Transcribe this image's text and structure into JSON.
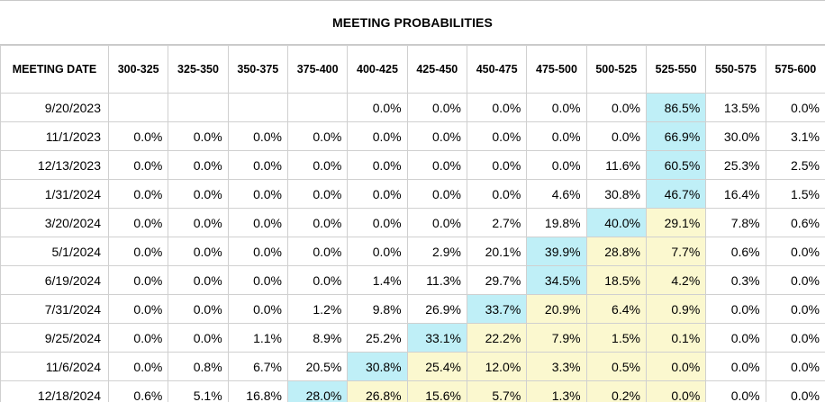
{
  "title": "MEETING PROBABILITIES",
  "colors": {
    "highest_probability": "#bfeff7",
    "above_current": "#fbf8cf",
    "grid": "#d0d0d0"
  },
  "header": {
    "date_label": "MEETING DATE",
    "ranges": [
      "300-325",
      "325-350",
      "350-375",
      "375-400",
      "400-425",
      "425-450",
      "450-475",
      "475-500",
      "500-525",
      "525-550",
      "550-575",
      "575-600"
    ]
  },
  "rows": [
    {
      "date": "9/20/2023",
      "values": [
        "",
        "",
        "",
        "",
        "0.0%",
        "0.0%",
        "0.0%",
        "0.0%",
        "0.0%",
        "86.5%",
        "13.5%",
        "0.0%"
      ],
      "highlight": {
        "9": "blue"
      }
    },
    {
      "date": "11/1/2023",
      "values": [
        "0.0%",
        "0.0%",
        "0.0%",
        "0.0%",
        "0.0%",
        "0.0%",
        "0.0%",
        "0.0%",
        "0.0%",
        "66.9%",
        "30.0%",
        "3.1%"
      ],
      "highlight": {
        "9": "blue"
      }
    },
    {
      "date": "12/13/2023",
      "values": [
        "0.0%",
        "0.0%",
        "0.0%",
        "0.0%",
        "0.0%",
        "0.0%",
        "0.0%",
        "0.0%",
        "11.6%",
        "60.5%",
        "25.3%",
        "2.5%"
      ],
      "highlight": {
        "9": "blue"
      }
    },
    {
      "date": "1/31/2024",
      "values": [
        "0.0%",
        "0.0%",
        "0.0%",
        "0.0%",
        "0.0%",
        "0.0%",
        "0.0%",
        "4.6%",
        "30.8%",
        "46.7%",
        "16.4%",
        "1.5%"
      ],
      "highlight": {
        "9": "blue"
      }
    },
    {
      "date": "3/20/2024",
      "values": [
        "0.0%",
        "0.0%",
        "0.0%",
        "0.0%",
        "0.0%",
        "0.0%",
        "2.7%",
        "19.8%",
        "40.0%",
        "29.1%",
        "7.8%",
        "0.6%"
      ],
      "highlight": {
        "8": "blue",
        "9": "yellow"
      }
    },
    {
      "date": "5/1/2024",
      "values": [
        "0.0%",
        "0.0%",
        "0.0%",
        "0.0%",
        "0.0%",
        "2.9%",
        "20.1%",
        "39.9%",
        "28.8%",
        "7.7%",
        "0.6%",
        "0.0%"
      ],
      "highlight": {
        "7": "blue",
        "8": "yellow",
        "9": "yellow"
      }
    },
    {
      "date": "6/19/2024",
      "values": [
        "0.0%",
        "0.0%",
        "0.0%",
        "0.0%",
        "1.4%",
        "11.3%",
        "29.7%",
        "34.5%",
        "18.5%",
        "4.2%",
        "0.3%",
        "0.0%"
      ],
      "highlight": {
        "7": "blue",
        "8": "yellow",
        "9": "yellow"
      }
    },
    {
      "date": "7/31/2024",
      "values": [
        "0.0%",
        "0.0%",
        "0.0%",
        "1.2%",
        "9.8%",
        "26.9%",
        "33.7%",
        "20.9%",
        "6.4%",
        "0.9%",
        "0.0%",
        "0.0%"
      ],
      "highlight": {
        "6": "blue",
        "7": "yellow",
        "8": "yellow",
        "9": "yellow"
      }
    },
    {
      "date": "9/25/2024",
      "values": [
        "0.0%",
        "0.0%",
        "1.1%",
        "8.9%",
        "25.2%",
        "33.1%",
        "22.2%",
        "7.9%",
        "1.5%",
        "0.1%",
        "0.0%",
        "0.0%"
      ],
      "highlight": {
        "5": "blue",
        "6": "yellow",
        "7": "yellow",
        "8": "yellow",
        "9": "yellow"
      }
    },
    {
      "date": "11/6/2024",
      "values": [
        "0.0%",
        "0.8%",
        "6.7%",
        "20.5%",
        "30.8%",
        "25.4%",
        "12.0%",
        "3.3%",
        "0.5%",
        "0.0%",
        "0.0%",
        "0.0%"
      ],
      "highlight": {
        "4": "blue",
        "5": "yellow",
        "6": "yellow",
        "7": "yellow",
        "8": "yellow",
        "9": "yellow"
      }
    },
    {
      "date": "12/18/2024",
      "values": [
        "0.6%",
        "5.1%",
        "16.8%",
        "28.0%",
        "26.8%",
        "15.6%",
        "5.7%",
        "1.3%",
        "0.2%",
        "0.0%",
        "0.0%",
        "0.0%"
      ],
      "highlight": {
        "3": "blue",
        "4": "yellow",
        "5": "yellow",
        "6": "yellow",
        "7": "yellow",
        "8": "yellow",
        "9": "yellow"
      }
    }
  ]
}
